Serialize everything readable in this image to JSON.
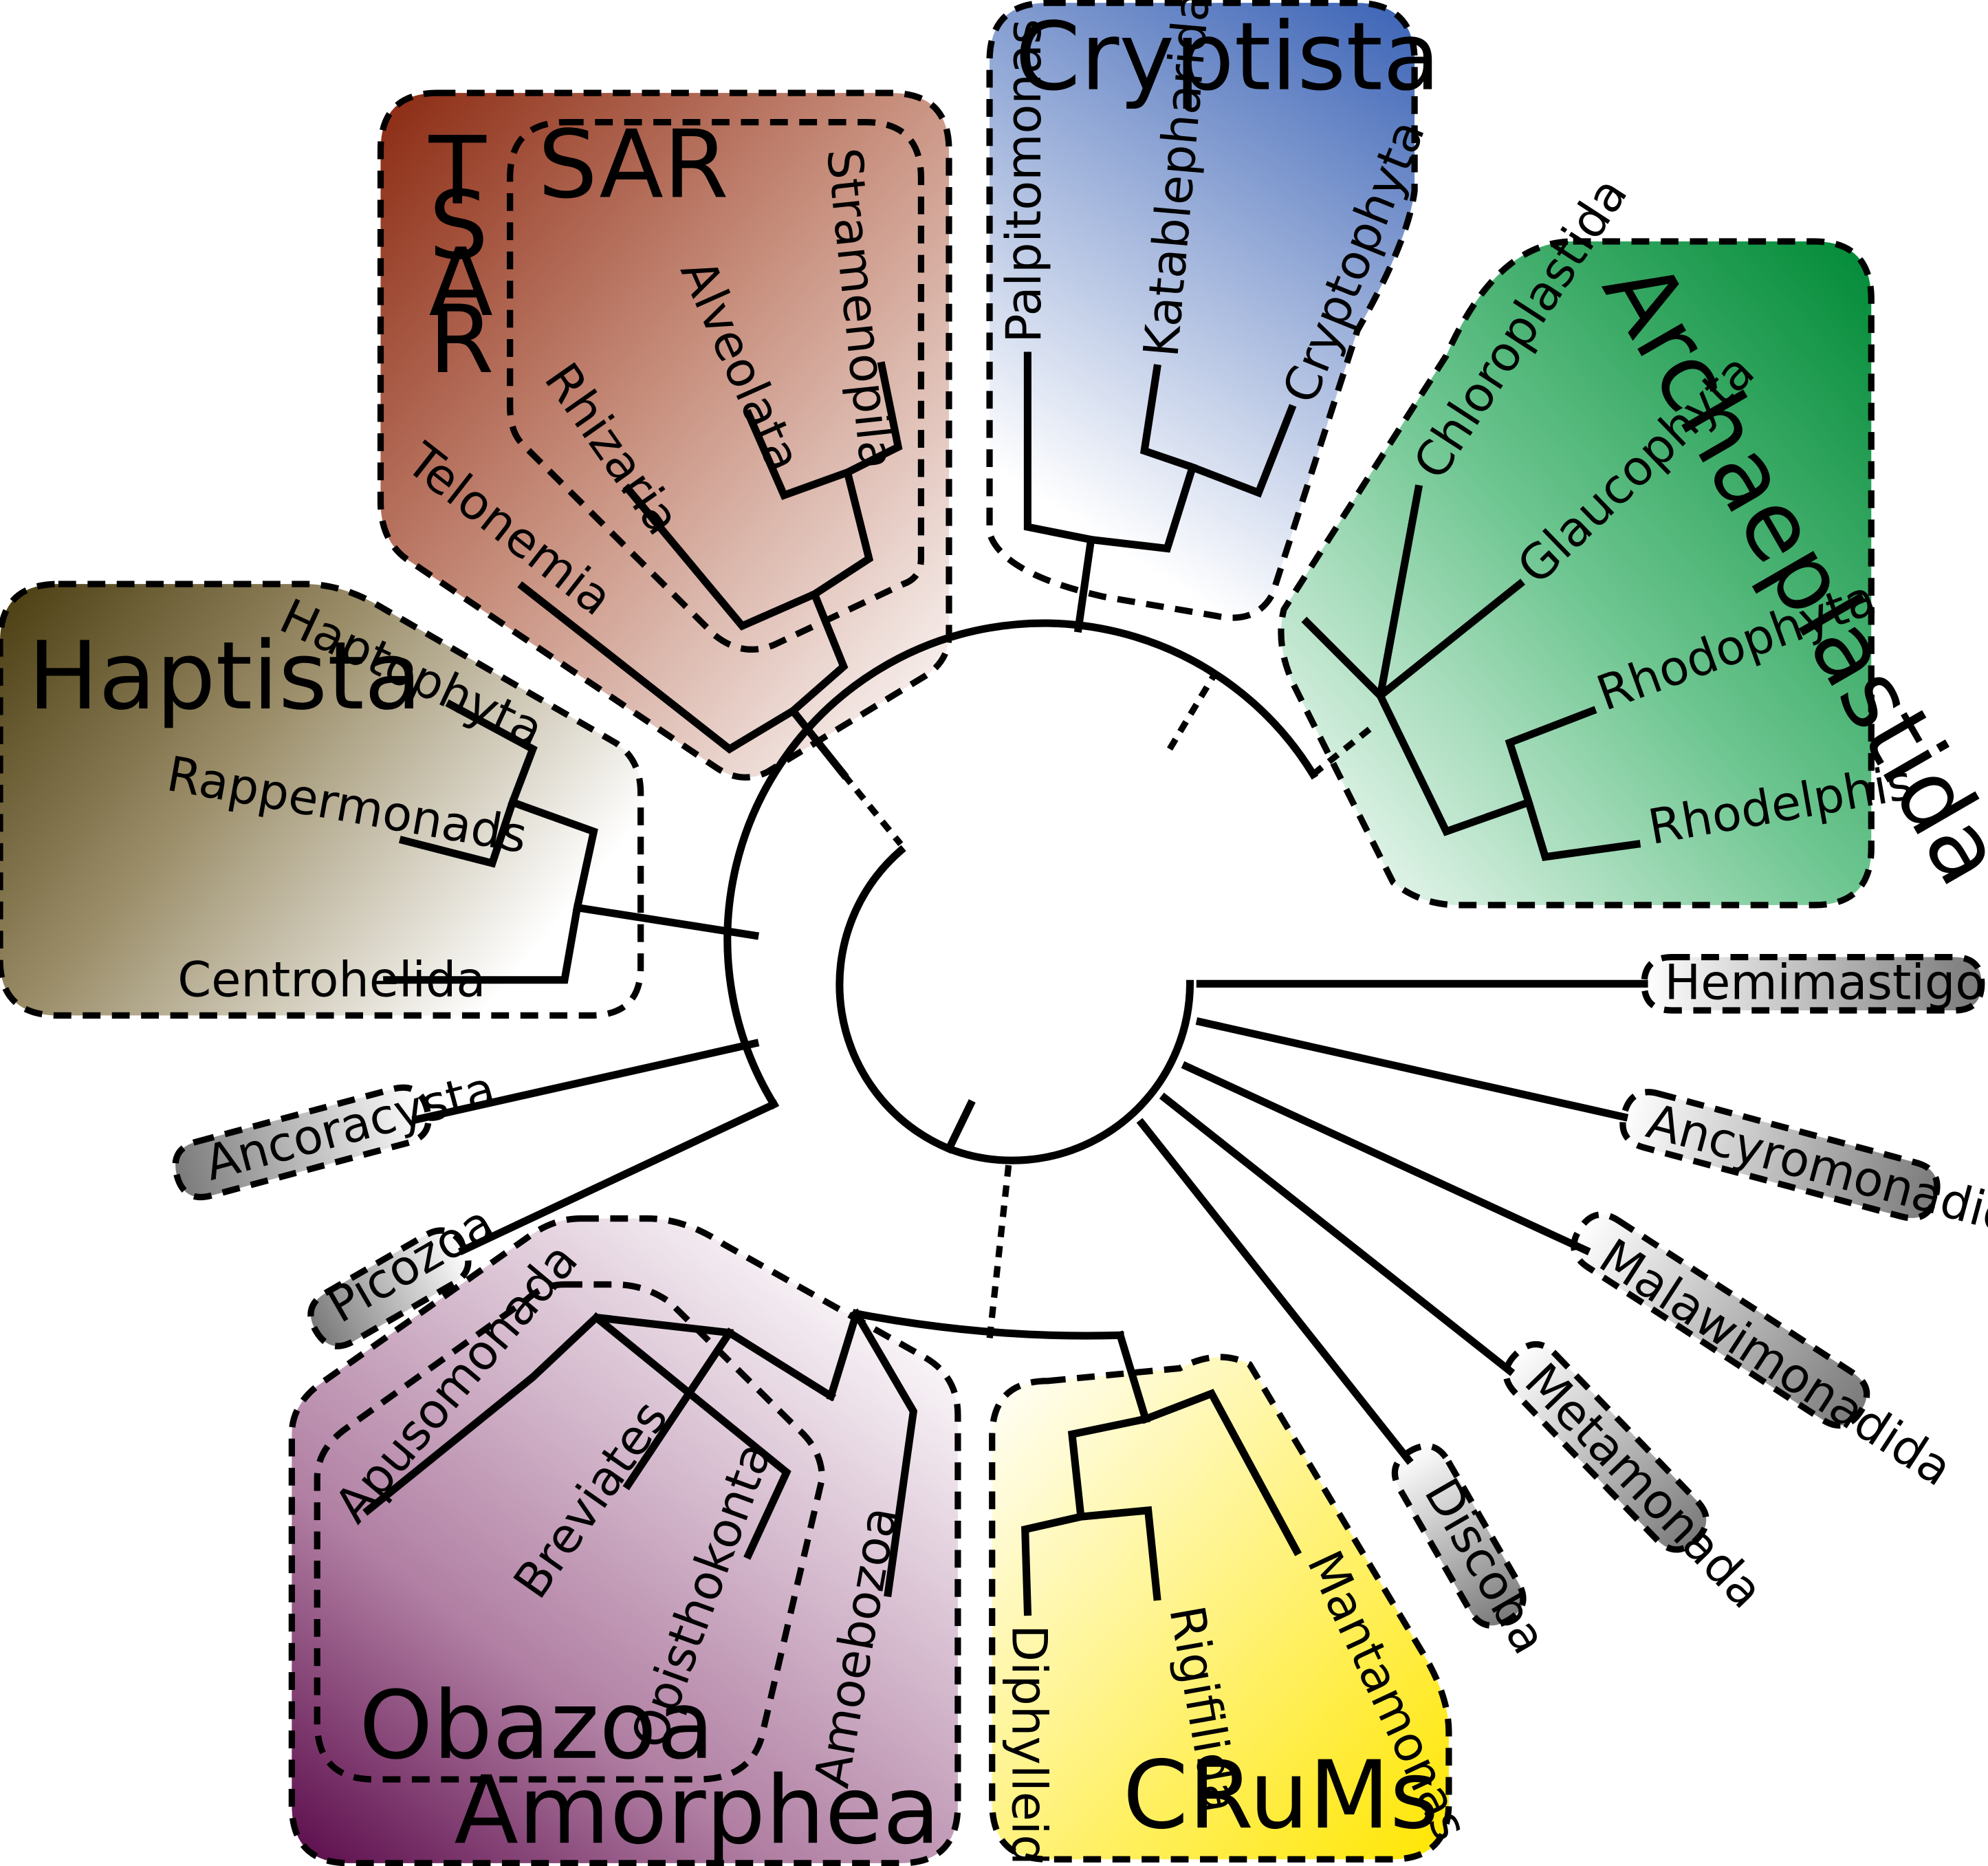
{
  "groups": {
    "cryptista": "Cryptista",
    "tsar": [
      "T",
      "S",
      "A",
      "R"
    ],
    "sar": "SAR",
    "archaeplastida": "Archaeplastida",
    "haptista": "Haptista",
    "obazoa": "Obazoa",
    "amorphea": "Amorphea",
    "crums": "CRuMs"
  },
  "taxa": {
    "palpitomonas": "Palpitomonas",
    "katablepharida": "Katablepharida",
    "cryptophyta": "Cryptophyta",
    "stramenopila": "Stramenopila",
    "alveolata": "Alveolata",
    "rhizaria": "Rhizaria",
    "telonemia": "Telonemia",
    "chloroplastida": "Chloroplastida",
    "glaucophyta": "Glaucophyta",
    "rhodophyta": "Rhodophyta",
    "rhodelphis": "Rhodelphis",
    "haptophyta": "Haptophyta",
    "rappermonads": "Rappermonads",
    "centrohelida": "Centrohelida",
    "hemimastigophora": "Hemimastigophora",
    "ancyromonadida": "Ancyromonadida",
    "malawimonadida": "Malawimonadida",
    "metamonada": "Metamonada",
    "discoba": "Discoba",
    "ancoracysta": "Ancoracysta",
    "picozoa": "Picozoa",
    "apusomonada": "Apusomonada",
    "breviates": "Breviates",
    "opisthokonta": "Opisthokonta",
    "amoebozoa": "Amoebozoa",
    "diphylleida": "Diphylleida",
    "rigifilida": "Rigifilida",
    "mantamonas": "Mantamonas"
  },
  "colors": {
    "cryptista": "#3a62b5",
    "tsar": "#8b2a12",
    "sar": "#f0441e",
    "archaeplastida": "#008a36",
    "haptista": "#4a3c10",
    "obazoa": "#b13c9a",
    "amorphea": "#5a0a4a",
    "crums": "#ffe600",
    "singleton": "#7a7a7a"
  }
}
